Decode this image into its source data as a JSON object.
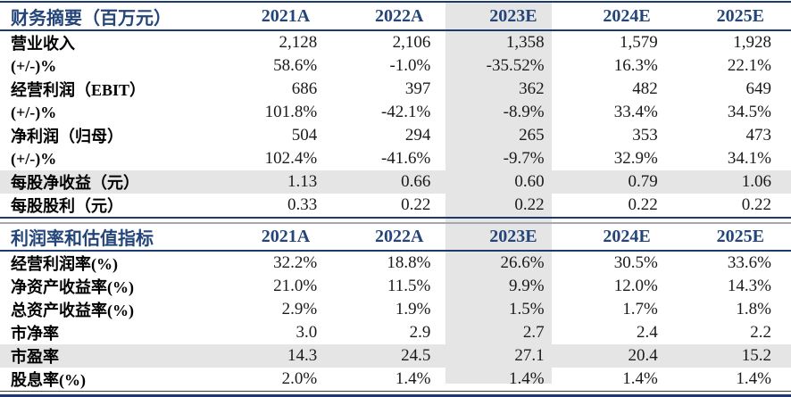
{
  "columns": [
    "2021A",
    "2022A",
    "2023E",
    "2024E",
    "2025E"
  ],
  "highlight": {
    "column": "2023E",
    "column_index": 2,
    "band_color": "#E5E5E5"
  },
  "colors": {
    "header_text_navy": "#234579",
    "rule_navy": "#1C3A6B",
    "rule_gray": "#A3A9B0",
    "body_text": "#1A1A1A",
    "row_highlight_gray": "#E5E5E5"
  },
  "tables": [
    {
      "title": "财务摘要（百万元）",
      "rows": [
        {
          "label": "营业收入",
          "values": [
            "2,128",
            "2,106",
            "1,358",
            "1,579",
            "1,928"
          ],
          "highlight": false
        },
        {
          "label": "(+/-)%",
          "values": [
            "58.6%",
            "-1.0%",
            "-35.52%",
            "16.3%",
            "22.1%"
          ],
          "highlight": false
        },
        {
          "label": "经营利润（EBIT）",
          "values": [
            "686",
            "397",
            "362",
            "482",
            "649"
          ],
          "highlight": false
        },
        {
          "label": "(+/-)%",
          "values": [
            "101.8%",
            "-42.1%",
            "-8.9%",
            "33.4%",
            "34.5%"
          ],
          "highlight": false
        },
        {
          "label": "净利润（归母）",
          "values": [
            "504",
            "294",
            "265",
            "353",
            "473"
          ],
          "highlight": false
        },
        {
          "label": "(+/-)%",
          "values": [
            "102.4%",
            "-41.6%",
            "-9.7%",
            "32.9%",
            "34.1%"
          ],
          "highlight": false
        },
        {
          "label": "每股净收益（元）",
          "values": [
            "1.13",
            "0.66",
            "0.60",
            "0.79",
            "1.06"
          ],
          "highlight": true
        },
        {
          "label": "每股股利（元）",
          "values": [
            "0.33",
            "0.22",
            "0.22",
            "0.22",
            "0.22"
          ],
          "highlight": false
        }
      ]
    },
    {
      "title": "利润率和估值指标",
      "rows": [
        {
          "label": "经营利润率(%)",
          "values": [
            "32.2%",
            "18.8%",
            "26.6%",
            "30.5%",
            "33.6%"
          ],
          "highlight": false
        },
        {
          "label": "净资产收益率(%)",
          "values": [
            "21.0%",
            "11.5%",
            "9.9%",
            "12.0%",
            "14.3%"
          ],
          "highlight": false
        },
        {
          "label": "总资产收益率(%)",
          "values": [
            "2.9%",
            "1.9%",
            "1.5%",
            "1.7%",
            "1.8%"
          ],
          "highlight": false
        },
        {
          "label": "市净率",
          "values": [
            "3.0",
            "2.9",
            "2.7",
            "2.4",
            "2.2"
          ],
          "highlight": false
        },
        {
          "label": "市盈率",
          "values": [
            "14.3",
            "24.5",
            "27.1",
            "20.4",
            "15.2"
          ],
          "highlight": true
        },
        {
          "label": "股息率(%)",
          "values": [
            "2.0%",
            "1.4%",
            "1.4%",
            "1.4%",
            "1.4%"
          ],
          "highlight": false
        }
      ]
    }
  ]
}
